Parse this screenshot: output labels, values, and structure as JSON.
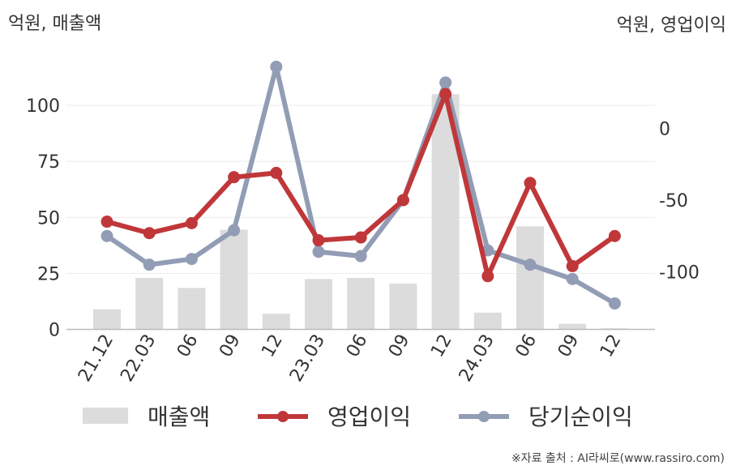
{
  "chart_data": {
    "type": "bar+line",
    "left_axis_label": "억원, 매출액",
    "right_axis_label": "억원, 영업이익",
    "categories": [
      "21.12",
      "22.03",
      "06",
      "09",
      "12",
      "23.03",
      "06",
      "09",
      "12",
      "24.03",
      "06",
      "09",
      "12"
    ],
    "left_axis": {
      "ylim": [
        0,
        120
      ],
      "ticks": [
        "0",
        "25",
        "50",
        "75",
        "100"
      ],
      "tick_values": [
        0,
        25,
        50,
        75,
        100
      ]
    },
    "right_axis": {
      "ylim": [
        -140,
        40
      ],
      "ticks": [
        "0",
        "-50",
        "-100"
      ],
      "tick_values": [
        0,
        -50,
        -100
      ]
    },
    "grid": true,
    "series": [
      {
        "name": "매출액",
        "kind": "bar",
        "axis": "left",
        "color": "#dcdcdc",
        "values": [
          9,
          23,
          18.5,
          44.5,
          7,
          22.5,
          23,
          20.5,
          105,
          7.5,
          46,
          2.5,
          0.5
        ]
      },
      {
        "name": "영업이익",
        "kind": "line",
        "axis": "right",
        "color": "#c0373a",
        "values": [
          -65,
          -73,
          -66,
          -34,
          -31,
          -78,
          -76,
          -50,
          24,
          -103,
          -38,
          -96,
          -75
        ]
      },
      {
        "name": "당기순이익",
        "kind": "line",
        "axis": "right",
        "color": "#929db5",
        "values": [
          -75,
          -95,
          -91,
          -71,
          43,
          -86,
          -89,
          -50,
          32,
          -85,
          -95,
          -105,
          -122
        ]
      }
    ],
    "legend": {
      "position": "bottom",
      "items": [
        "매출액",
        "영업이익",
        "당기순이익"
      ]
    },
    "source": "※자료 출처 : AI라씨로(www.rassiro.com)"
  }
}
